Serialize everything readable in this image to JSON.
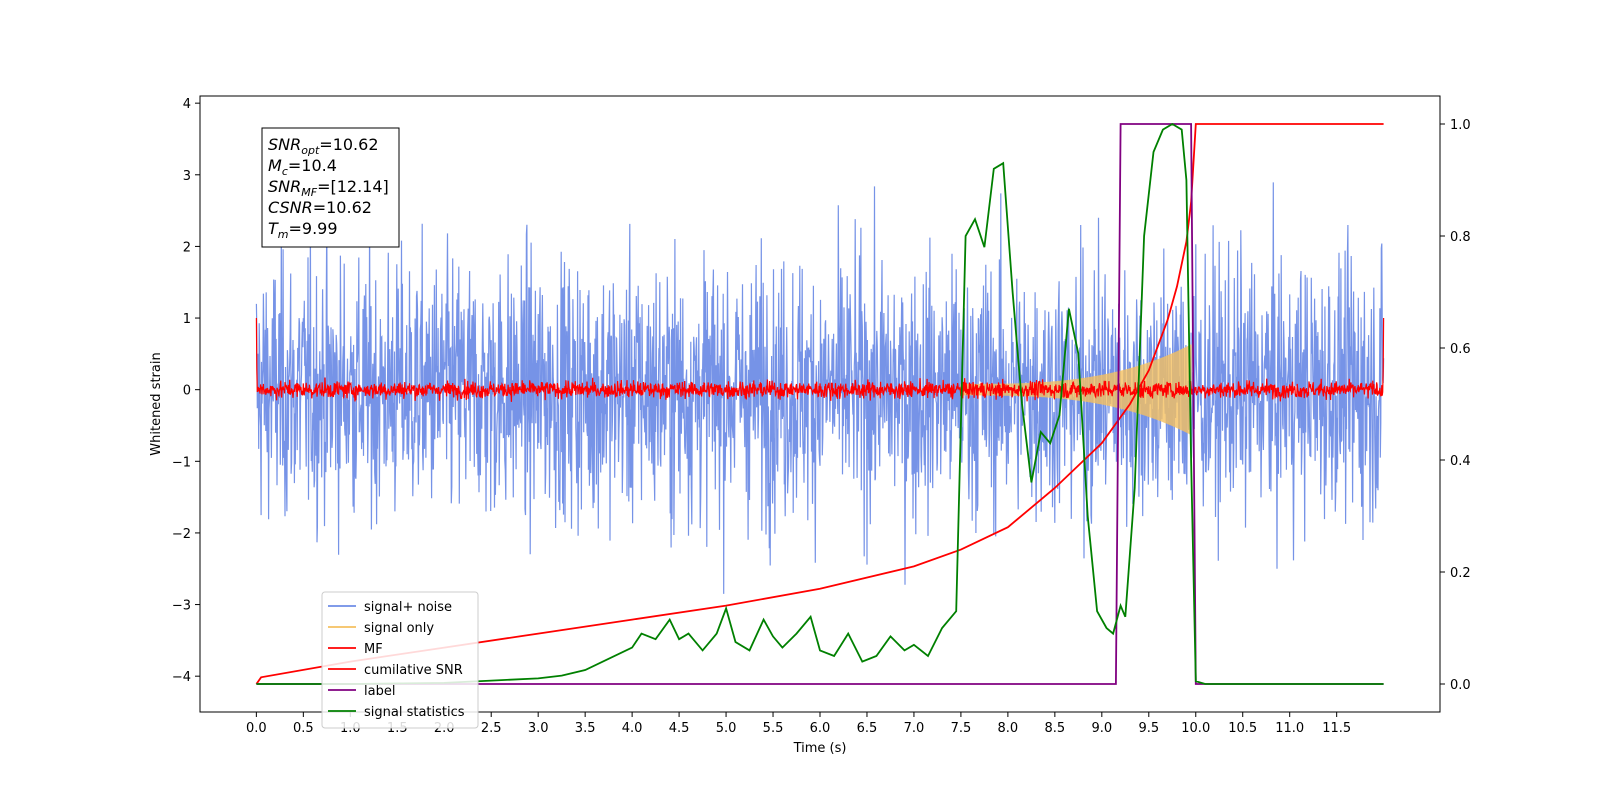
{
  "chart_data": {
    "type": "line",
    "xlabel": "Time (s)",
    "ylabel": "Whitened strain",
    "xlim": [
      -0.6,
      12.6
    ],
    "ylim": [
      -4.5,
      4.1
    ],
    "y2lim": [
      -0.05,
      1.05
    ],
    "x_ticks": [
      "0.0",
      "0.5",
      "1.0",
      "1.5",
      "2.0",
      "2.5",
      "3.0",
      "3.5",
      "4.0",
      "4.5",
      "5.0",
      "5.5",
      "6.0",
      "6.5",
      "7.0",
      "7.5",
      "8.0",
      "8.5",
      "9.0",
      "9.5",
      "10.0",
      "10.5",
      "11.0",
      "11.5"
    ],
    "x_tick_values": [
      0.0,
      0.5,
      1.0,
      1.5,
      2.0,
      2.5,
      3.0,
      3.5,
      4.0,
      4.5,
      5.0,
      5.5,
      6.0,
      6.5,
      7.0,
      7.5,
      8.0,
      8.5,
      9.0,
      9.5,
      10.0,
      10.5,
      11.0,
      11.5
    ],
    "y_ticks": [
      "4",
      "3",
      "2",
      "1",
      "0",
      "−1",
      "−2",
      "−3",
      "−4"
    ],
    "y_tick_values": [
      4,
      3,
      2,
      1,
      0,
      -1,
      -2,
      -3,
      -4
    ],
    "y2_ticks": [
      "1.0",
      "0.8",
      "0.6",
      "0.4",
      "0.2",
      "0.0"
    ],
    "y2_tick_values": [
      1.0,
      0.8,
      0.6,
      0.4,
      0.2,
      0.0
    ],
    "grid": false,
    "legend_position": "lower-left",
    "info_box": {
      "lines": [
        {
          "sym": "SNR",
          "sub": "opt",
          "value": "=10.62"
        },
        {
          "sym": "M",
          "sub": "c",
          "value": "=10.4"
        },
        {
          "sym": "SNR",
          "sub": "MF",
          "value": "=[12.14]"
        },
        {
          "sym": "CSNR",
          "sub": "",
          "value": "=10.62"
        },
        {
          "sym": "T",
          "sub": "m",
          "value": "=9.99"
        }
      ]
    },
    "series": [
      {
        "name": "signal+ noise",
        "color": "#6f8de6",
        "axis": "left",
        "style": "noise",
        "amplitude_std": 0.9,
        "x_range": [
          0.0,
          12.0
        ]
      },
      {
        "name": "signal only",
        "color": "#f5c060",
        "axis": "left",
        "style": "chirp",
        "x_range": [
          7.5,
          9.95
        ],
        "envelope_end": 0.55
      },
      {
        "name": "MF",
        "color": "#ff0000",
        "axis": "left",
        "style": "mf_noise",
        "amplitude_std": 0.06,
        "x_range": [
          0.0,
          12.0
        ],
        "edge_value": 1.0
      },
      {
        "name": "cumilative SNR",
        "color": "#ff0000",
        "axis": "right",
        "x": [
          0.0,
          0.05,
          1.0,
          2.0,
          3.0,
          4.0,
          5.0,
          6.0,
          7.0,
          7.5,
          8.0,
          8.5,
          9.0,
          9.3,
          9.5,
          9.7,
          9.8,
          9.9,
          9.95,
          10.0,
          12.0
        ],
        "y": [
          0.0,
          0.012,
          0.04,
          0.065,
          0.09,
          0.115,
          0.14,
          0.17,
          0.21,
          0.24,
          0.28,
          0.35,
          0.43,
          0.5,
          0.56,
          0.65,
          0.71,
          0.79,
          0.86,
          1.0,
          1.0
        ]
      },
      {
        "name": "label",
        "color": "#800080",
        "axis": "right",
        "x": [
          0.0,
          9.15,
          9.2,
          9.95,
          10.0,
          12.0
        ],
        "y": [
          0.0,
          0.0,
          1.0,
          1.0,
          0.0,
          0.0
        ]
      },
      {
        "name": "signal statistics",
        "color": "#008000",
        "axis": "right",
        "x": [
          0.0,
          1.0,
          2.0,
          2.5,
          3.0,
          3.25,
          3.5,
          3.75,
          4.0,
          4.1,
          4.25,
          4.4,
          4.5,
          4.6,
          4.75,
          4.9,
          5.0,
          5.1,
          5.25,
          5.4,
          5.5,
          5.6,
          5.75,
          5.9,
          6.0,
          6.15,
          6.3,
          6.45,
          6.6,
          6.75,
          6.9,
          7.0,
          7.15,
          7.3,
          7.45,
          7.55,
          7.65,
          7.75,
          7.85,
          7.95,
          8.05,
          8.15,
          8.25,
          8.35,
          8.45,
          8.55,
          8.65,
          8.75,
          8.85,
          8.95,
          9.05,
          9.12,
          9.2,
          9.25,
          9.35,
          9.45,
          9.55,
          9.65,
          9.75,
          9.85,
          9.9,
          9.95,
          10.0,
          10.1,
          11.0,
          12.0
        ],
        "y": [
          0.0,
          0.0,
          0.002,
          0.006,
          0.01,
          0.015,
          0.025,
          0.045,
          0.065,
          0.09,
          0.08,
          0.115,
          0.08,
          0.09,
          0.06,
          0.09,
          0.135,
          0.075,
          0.06,
          0.115,
          0.085,
          0.065,
          0.09,
          0.12,
          0.06,
          0.05,
          0.09,
          0.04,
          0.05,
          0.085,
          0.06,
          0.07,
          0.05,
          0.1,
          0.13,
          0.8,
          0.83,
          0.78,
          0.92,
          0.93,
          0.7,
          0.5,
          0.36,
          0.45,
          0.43,
          0.48,
          0.67,
          0.59,
          0.3,
          0.13,
          0.1,
          0.09,
          0.14,
          0.12,
          0.35,
          0.8,
          0.95,
          0.99,
          1.0,
          0.99,
          0.9,
          0.4,
          0.005,
          0.0,
          0.0,
          0.0
        ]
      }
    ]
  }
}
